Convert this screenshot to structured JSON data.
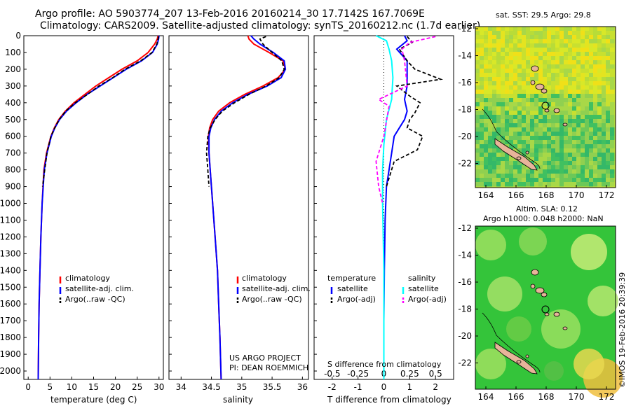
{
  "header": {
    "title_line1": "Argo profile: AO 5903774_207 13-Feb-2016 20160214_30 17.7142S 167.7069E",
    "title_line2": "Climatology: CARS2009. Satellite-adjusted climatology: synTS_20160212.nc (1.7d earlier)"
  },
  "colors": {
    "climatology": "#ff0000",
    "satellite": "#0000ff",
    "argo": "#000000",
    "sat_salinity": "#00ffff",
    "argo_salinity": "#ff00ff",
    "land": "#e8b49a"
  },
  "depth_axis": {
    "range": [
      0,
      2050
    ],
    "ticks": [
      0,
      100,
      200,
      300,
      400,
      500,
      600,
      700,
      800,
      900,
      1000,
      1100,
      1200,
      1300,
      1400,
      1500,
      1600,
      1700,
      1800,
      1900,
      2000
    ]
  },
  "temperature_panel": {
    "xlabel": "temperature (deg C)",
    "xlim": [
      -1,
      31
    ],
    "xticks": [
      0,
      5,
      10,
      15,
      20,
      25,
      30
    ],
    "legend": [
      "climatology",
      "satellite-adj. clim.",
      "Argo(..raw -QC)"
    ]
  },
  "salinity_panel": {
    "xlabel": "salinity",
    "xlim": [
      33.8,
      36.1
    ],
    "xticks": [
      "34",
      "34.5",
      "35",
      "35.5",
      "36"
    ],
    "legend": [
      "climatology",
      "satellite-adj. clim.",
      "Argo(..raw -QC)"
    ],
    "credit_line1": "US ARGO PROJECT",
    "credit_line2": "PI: DEAN ROEMMICH"
  },
  "difference_panel": {
    "t_label": "T difference from climatology",
    "s_label": "S difference from climatology",
    "t_ticks": [
      "-2",
      "-1",
      "0",
      "1",
      "2"
    ],
    "s_ticks": [
      "-0.5",
      "-0.25",
      "0",
      "0.25",
      "0.5"
    ],
    "legend_temperature": {
      "title": "temperature",
      "items": [
        "satellite",
        "Argo(-adj)"
      ]
    },
    "legend_salinity": {
      "title": "salinity",
      "items": [
        "satellite",
        "Argo(-adj)"
      ]
    }
  },
  "map_sst": {
    "title": "sat. SST: 29.5  Argo: 29.8",
    "xticks": [
      "164",
      "166",
      "168",
      "170",
      "172"
    ],
    "yticks": [
      "-12",
      "-14",
      "-16",
      "-18",
      "-20",
      "-22"
    ]
  },
  "map_sla": {
    "title_line1": "Altim. SLA: 0.12",
    "title_line2": "Argo h1000: 0.048 h2000: NaN",
    "xticks": [
      "164",
      "166",
      "168",
      "170",
      "172"
    ],
    "yticks": [
      "-12",
      "-14",
      "-16",
      "-18",
      "-20",
      "-22"
    ]
  },
  "timestamp": "©IMOS 19-Feb-2016 20:39:39",
  "chart_data": [
    {
      "type": "line",
      "name": "temperature profile",
      "ylabel": "depth",
      "xlabel": "temperature (deg C)",
      "ylim": [
        0,
        2050
      ],
      "xlim": [
        -1,
        31
      ],
      "series": [
        {
          "name": "climatology",
          "color": "#ff0000",
          "x": [
            29.8,
            29.6,
            29.0,
            27.5,
            25.0,
            21.5,
            18.5,
            15.5,
            13.0,
            10.5,
            8.5,
            7.0,
            6.0,
            5.2,
            4.2,
            3.6,
            3.2,
            2.9,
            2.7,
            2.5,
            2.4,
            2.3
          ],
          "y": [
            0,
            20,
            50,
            100,
            150,
            200,
            250,
            300,
            350,
            400,
            450,
            500,
            550,
            600,
            700,
            800,
            1000,
            1200,
            1400,
            1600,
            1800,
            2050
          ]
        },
        {
          "name": "satellite-adj. clim.",
          "color": "#0000ff",
          "x": [
            30.0,
            29.9,
            29.6,
            28.5,
            26.0,
            22.5,
            19.5,
            16.5,
            13.5,
            11.0,
            8.8,
            7.2,
            6.1,
            5.3,
            4.3,
            3.7,
            3.2,
            2.9,
            2.7,
            2.5,
            2.4,
            2.3
          ],
          "y": [
            0,
            20,
            50,
            100,
            150,
            200,
            250,
            300,
            350,
            400,
            450,
            500,
            550,
            600,
            700,
            800,
            1000,
            1200,
            1400,
            1600,
            1800,
            2050
          ]
        },
        {
          "name": "Argo",
          "color": "#000000",
          "dashed": true,
          "x": [
            29.9,
            29.8,
            29.5,
            28.4,
            25.8,
            22.2,
            19.4,
            16.2,
            13.6,
            10.8,
            8.6,
            7.1,
            6.1,
            5.2,
            4.3,
            3.8,
            3.3
          ],
          "y": [
            5,
            20,
            50,
            100,
            150,
            200,
            250,
            300,
            350,
            400,
            450,
            500,
            550,
            600,
            700,
            800,
            900
          ]
        }
      ]
    },
    {
      "type": "line",
      "name": "salinity profile",
      "ylabel": "depth",
      "xlabel": "salinity",
      "ylim": [
        0,
        2050
      ],
      "xlim": [
        33.8,
        36.1
      ],
      "series": [
        {
          "name": "climatology",
          "color": "#ff0000",
          "x": [
            35.1,
            35.12,
            35.2,
            35.45,
            35.68,
            35.72,
            35.6,
            35.35,
            35.05,
            34.8,
            34.62,
            34.52,
            34.47,
            34.45,
            34.46,
            34.48,
            34.52,
            34.56,
            34.6,
            34.62,
            34.64,
            34.66
          ],
          "y": [
            0,
            20,
            50,
            100,
            150,
            200,
            250,
            300,
            350,
            400,
            450,
            500,
            550,
            600,
            700,
            800,
            1000,
            1200,
            1400,
            1600,
            1800,
            2050
          ]
        },
        {
          "name": "satellite-adj. clim.",
          "color": "#0000ff",
          "x": [
            35.15,
            35.2,
            35.3,
            35.52,
            35.7,
            35.72,
            35.65,
            35.42,
            35.1,
            34.85,
            34.66,
            34.55,
            34.49,
            34.46,
            34.46,
            34.48,
            34.52,
            34.56,
            34.6,
            34.62,
            34.64,
            34.66
          ],
          "y": [
            0,
            20,
            50,
            100,
            150,
            200,
            250,
            300,
            350,
            400,
            450,
            500,
            550,
            600,
            700,
            800,
            1000,
            1200,
            1400,
            1600,
            1800,
            2050
          ]
        },
        {
          "name": "Argo",
          "color": "#000000",
          "dashed": true,
          "x": [
            35.4,
            35.3,
            35.35,
            35.5,
            35.66,
            35.7,
            35.62,
            35.4,
            35.12,
            34.88,
            34.68,
            34.56,
            34.48,
            34.44,
            34.42,
            34.44,
            34.46
          ],
          "y": [
            5,
            20,
            50,
            100,
            150,
            200,
            250,
            300,
            350,
            400,
            450,
            500,
            550,
            600,
            700,
            800,
            900
          ]
        }
      ]
    },
    {
      "type": "line",
      "name": "difference from climatology",
      "ylabel": "depth",
      "xlabel": "T difference from climatology",
      "ylim": [
        0,
        2050
      ],
      "xlim": [
        -2.7,
        2.7
      ],
      "series": [
        {
          "name": "temperature satellite",
          "color": "#0000ff",
          "x": [
            0.8,
            0.9,
            0.5,
            0.9,
            0.9,
            0.9,
            0.8,
            0.9,
            0.8,
            0.6,
            0.4,
            0.3,
            0.1,
            0.05,
            0.02,
            0.0,
            0.0
          ],
          "y": [
            0,
            30,
            80,
            150,
            220,
            300,
            380,
            450,
            500,
            550,
            600,
            700,
            900,
            1100,
            1400,
            1700,
            2050
          ]
        },
        {
          "name": "temperature Argo(-adj)",
          "color": "#000000",
          "dashed": true,
          "x": [
            0.9,
            1.1,
            0.6,
            0.9,
            1.2,
            2.2,
            0.5,
            1.0,
            1.4,
            1.2,
            1.0,
            0.9,
            1.5,
            1.3,
            0.4,
            0.1
          ],
          "y": [
            5,
            40,
            80,
            150,
            200,
            260,
            300,
            360,
            400,
            460,
            500,
            550,
            600,
            680,
            750,
            900
          ]
        },
        {
          "name": "salinity satellite",
          "color": "#00ffff",
          "x": [
            -0.3,
            0.1,
            0.2,
            0.3,
            0.35,
            0.3,
            0.1,
            0.0,
            -0.05,
            -0.05,
            0.0,
            0.0
          ],
          "y": [
            0,
            30,
            80,
            150,
            250,
            380,
            500,
            650,
            800,
            1000,
            1400,
            2050
          ]
        },
        {
          "name": "salinity Argo(-adj)",
          "color": "#ff00ff",
          "dashed": true,
          "x": [
            2.0,
            1.0,
            0.7,
            0.8,
            0.9,
            -0.2,
            0.2,
            0.0,
            -0.3,
            -0.2,
            -0.05
          ],
          "y": [
            5,
            40,
            80,
            150,
            300,
            380,
            420,
            600,
            750,
            900,
            1000
          ]
        }
      ]
    }
  ]
}
